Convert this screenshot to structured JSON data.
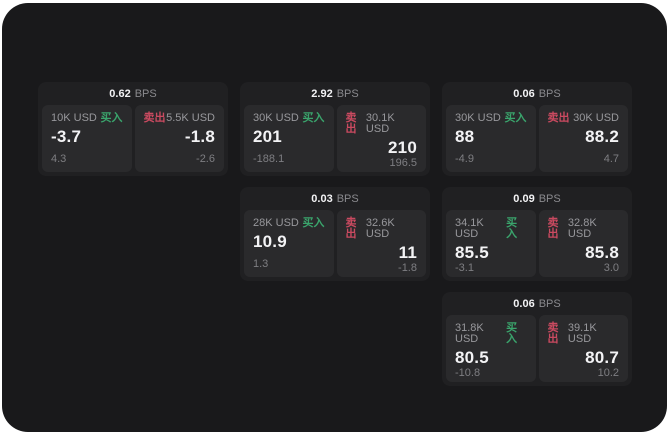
{
  "labels": {
    "bps_unit": "BPS",
    "buy": "买入",
    "sell": "卖出"
  },
  "colors": {
    "page_bg": "#ffffff",
    "app_bg": "#19191b",
    "card_bg": "#202022",
    "panel_bg": "#2a2a2c",
    "buy": "#3aa46c",
    "sell": "#ca4a60",
    "value_text": "#f3f3f5",
    "label_text": "#98989c",
    "sub_text": "#7e7e82",
    "unit_text": "#8a8a8e"
  },
  "cards": [
    {
      "row": 1,
      "col": 1,
      "bps": "0.62",
      "buy": {
        "size": "10K USD",
        "value": "-3.7",
        "sub": "4.3"
      },
      "sell": {
        "size": "5.5K USD",
        "value": "-1.8",
        "sub": "-2.6"
      }
    },
    {
      "row": 1,
      "col": 2,
      "bps": "2.92",
      "buy": {
        "size": "30K USD",
        "value": "201",
        "sub": "-188.1"
      },
      "sell": {
        "size": "30.1K USD",
        "value": "210",
        "sub": "196.5"
      }
    },
    {
      "row": 1,
      "col": 3,
      "bps": "0.06",
      "buy": {
        "size": "30K USD",
        "value": "88",
        "sub": "-4.9"
      },
      "sell": {
        "size": "30K USD",
        "value": "88.2",
        "sub": "4.7"
      }
    },
    {
      "row": 2,
      "col": 2,
      "bps": "0.03",
      "buy": {
        "size": "28K USD",
        "value": "10.9",
        "sub": "1.3"
      },
      "sell": {
        "size": "32.6K USD",
        "value": "11",
        "sub": "-1.8"
      }
    },
    {
      "row": 2,
      "col": 3,
      "bps": "0.09",
      "buy": {
        "size": "34.1K USD",
        "value": "85.5",
        "sub": "-3.1"
      },
      "sell": {
        "size": "32.8K USD",
        "value": "85.8",
        "sub": "3.0"
      }
    },
    {
      "row": 3,
      "col": 3,
      "bps": "0.06",
      "buy": {
        "size": "31.8K USD",
        "value": "80.5",
        "sub": "-10.8"
      },
      "sell": {
        "size": "39.1K USD",
        "value": "80.7",
        "sub": "10.2"
      }
    }
  ]
}
